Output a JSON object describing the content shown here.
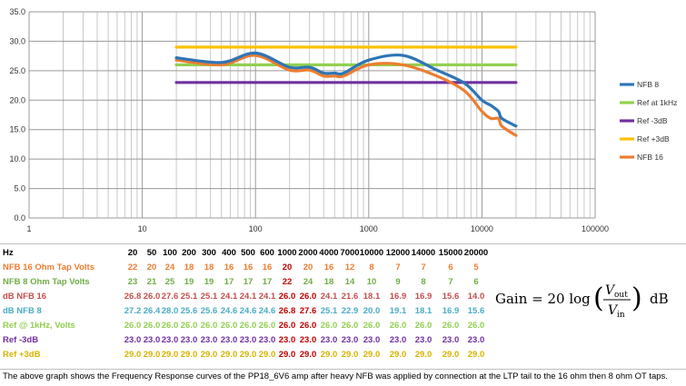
{
  "chart_data": {
    "type": "line",
    "x_scale": "log",
    "xlim": [
      1,
      100000
    ],
    "ylim": [
      0,
      35
    ],
    "x_ticks": [
      "1",
      "10",
      "100",
      "1000",
      "10000",
      "100000"
    ],
    "y_ticks": [
      "0.0",
      "5.0",
      "10.0",
      "15.0",
      "20.0",
      "25.0",
      "30.0",
      "35.0"
    ],
    "grid": true,
    "legend_position": "right",
    "x": [
      20,
      50,
      100,
      200,
      300,
      400,
      500,
      600,
      1000,
      2000,
      4000,
      7000,
      10000,
      12000,
      14000,
      15000,
      20000
    ],
    "series": [
      {
        "name": "NFB 8",
        "color": "#2e75b6",
        "values": [
          27.2,
          26.4,
          28.0,
          25.6,
          25.6,
          24.6,
          24.6,
          24.6,
          26.8,
          27.6,
          25.1,
          22.9,
          20.0,
          19.1,
          18.1,
          16.9,
          15.6
        ]
      },
      {
        "name": "Ref at 1kHz",
        "color": "#92d050",
        "values": [
          26.0,
          26.0,
          26.0,
          26.0,
          26.0,
          26.0,
          26.0,
          26.0,
          26.0,
          26.0,
          26.0,
          26.0,
          26.0,
          26.0,
          26.0,
          26.0,
          26.0
        ]
      },
      {
        "name": "Ref -3dB",
        "color": "#7030a0",
        "values": [
          23.0,
          23.0,
          23.0,
          23.0,
          23.0,
          23.0,
          23.0,
          23.0,
          23.0,
          23.0,
          23.0,
          23.0,
          23.0,
          23.0,
          23.0,
          23.0,
          23.0
        ]
      },
      {
        "name": "Ref +3dB",
        "color": "#ffc000",
        "values": [
          29.0,
          29.0,
          29.0,
          29.0,
          29.0,
          29.0,
          29.0,
          29.0,
          29.0,
          29.0,
          29.0,
          29.0,
          29.0,
          29.0,
          29.0,
          29.0,
          29.0
        ]
      },
      {
        "name": "NFB 16",
        "color": "#ed7d31",
        "values": [
          26.8,
          26.0,
          27.6,
          25.1,
          25.1,
          24.1,
          24.1,
          24.1,
          26.0,
          26.0,
          24.1,
          21.6,
          18.1,
          16.9,
          16.9,
          15.6,
          14.0
        ]
      }
    ]
  },
  "table": {
    "header_label": "Hz",
    "columns": [
      "20",
      "50",
      "100",
      "200",
      "300",
      "400",
      "500",
      "600",
      "1000",
      "2000",
      "4000",
      "7000",
      "10000",
      "12000",
      "14000",
      "15000",
      "20000"
    ],
    "rows": [
      {
        "label": "NFB 16 Ohm Tap Volts",
        "color": "#ed7d31",
        "cells": [
          "22",
          "20",
          "24",
          "18",
          "18",
          "16",
          "16",
          "16",
          "20",
          "20",
          "16",
          "12",
          "8",
          "7",
          "7",
          "6",
          "5"
        ]
      },
      {
        "label": "NFB 8 Ohm Tap Volts",
        "color": "#70ad47",
        "cells": [
          "23",
          "21",
          "25",
          "19",
          "19",
          "17",
          "17",
          "17",
          "22",
          "24",
          "18",
          "14",
          "10",
          "9",
          "8",
          "7",
          "6"
        ]
      },
      {
        "label": "dB NFB 16",
        "color": "#c0504d",
        "cells": [
          "26.8",
          "26.0",
          "27.6",
          "25.1",
          "25.1",
          "24.1",
          "24.1",
          "24.1",
          "26.0",
          "26.0",
          "24.1",
          "21.6",
          "18.1",
          "16.9",
          "16.9",
          "15.6",
          "14.0"
        ]
      },
      {
        "label": "dB NFB 8",
        "color": "#4bacc6",
        "cells": [
          "27.2",
          "26.4",
          "28.0",
          "25.6",
          "25.6",
          "24.6",
          "24.6",
          "24.6",
          "26.8",
          "27.6",
          "25.1",
          "22.9",
          "20.0",
          "19.1",
          "18.1",
          "16.9",
          "15.6"
        ]
      },
      {
        "label": "Ref @ 1kHz, Volts",
        "color": "#92d050",
        "cells": [
          "26.0",
          "26.0",
          "26.0",
          "26.0",
          "26.0",
          "26.0",
          "26.0",
          "26.0",
          "26.0",
          "26.0",
          "26.0",
          "26.0",
          "26.0",
          "26.0",
          "26.0",
          "26.0",
          "26.0"
        ]
      },
      {
        "label": "Ref -3dB",
        "color": "#7030a0",
        "cells": [
          "23.0",
          "23.0",
          "23.0",
          "23.0",
          "23.0",
          "23.0",
          "23.0",
          "23.0",
          "23.0",
          "23.0",
          "23.0",
          "23.0",
          "23.0",
          "23.0",
          "23.0",
          "23.0",
          "23.0"
        ]
      },
      {
        "label": "Ref +3dB",
        "color": "#d6b300",
        "cells": [
          "29.0",
          "29.0",
          "29.0",
          "29.0",
          "29.0",
          "29.0",
          "29.0",
          "29.0",
          "29.0",
          "29.0",
          "29.0",
          "29.0",
          "29.0",
          "29.0",
          "29.0",
          "29.0",
          "29.0"
        ]
      }
    ]
  },
  "formula": {
    "lhs": "Gain = 20 log",
    "num": "V",
    "num_sub": "out",
    "den": "V",
    "den_sub": "in",
    "unit": "dB"
  },
  "caption": "The above graph shows the Frequency Response curves of the PP18_6V6 amp after heavy NFB was applied by connection at the LTP tail to the 16 ohm then 8 ohm OT taps."
}
